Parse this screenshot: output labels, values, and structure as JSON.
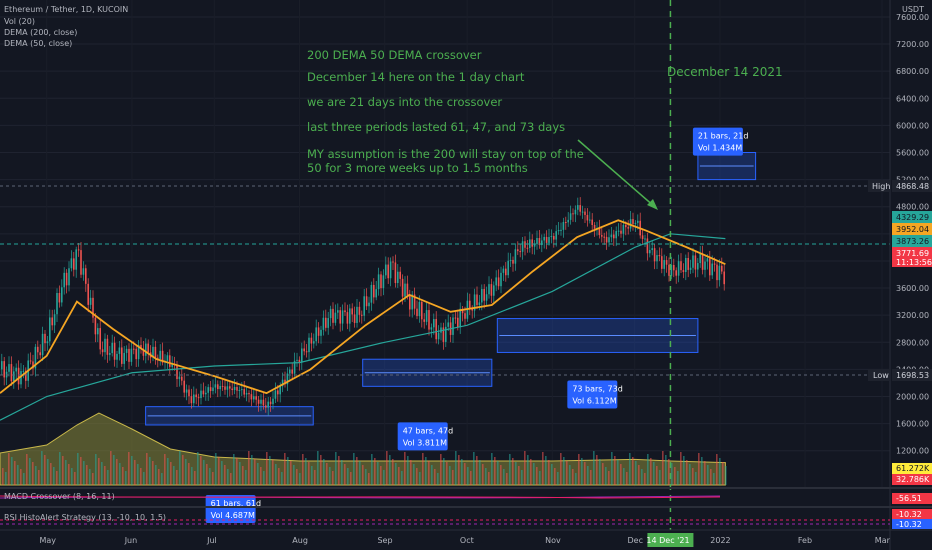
{
  "header": {
    "symbol": "Ethereum / Tether, 1D, KUCOIN",
    "indicators": [
      "Vol (20)",
      "DEMA (200, close)",
      "DEMA (50, close)"
    ]
  },
  "currency": "USDT",
  "annotations": {
    "lines": [
      "200 DEMA 50 DEMA crossover",
      "December 14 here on the 1 day chart",
      "we are 21 days into the crossover",
      "last three periods lasted 61, 47, and 73 days",
      "MY assumption is the 200 will stay on top of the",
      "50 for 3 more weeks up to 1.5 months"
    ],
    "vline_label": "December 14 2021",
    "color": "#4caf50"
  },
  "boxes": [
    {
      "bars": "61 bars, 61d",
      "vol": "Vol 4.687M"
    },
    {
      "bars": "47 bars, 47d",
      "vol": "Vol 3.811M"
    },
    {
      "bars": "73 bars, 73d",
      "vol": "Vol 6.112M"
    },
    {
      "bars": "21 bars, 21d",
      "vol": "Vol 1.434M"
    }
  ],
  "price_badges": {
    "high_label": "High",
    "high_value": "4868.48",
    "low_label": "Low",
    "low_value": "1698.53",
    "dema200": "4329.29",
    "dema50": "3952.04",
    "last_close": "3873.26",
    "current": "3771.69",
    "countdown": "11:13:56",
    "vol_a": "61.272K",
    "vol_b": "32.786K"
  },
  "panes": {
    "macd_label": "MACD Crossover (8, 16, 11)",
    "macd_value": "-56.51",
    "rsi_label": "RSI HistoAlert Strategy (13, -10, 10, 1.5)",
    "rsi_value_a": "-10.32",
    "rsi_value_b": "-10.32"
  },
  "x_axis": {
    "labels": [
      "May",
      "Jun",
      "Jul",
      "Aug",
      "Sep",
      "Oct",
      "Nov",
      "Dec",
      "14 Dec '21",
      "2022",
      "Feb",
      "Mar"
    ]
  },
  "chart_data": {
    "type": "line",
    "title": "Ethereum / Tether, 1D, KUCOIN",
    "y_ticks": [
      1200,
      1600,
      2000,
      2400,
      2800,
      3200,
      3600,
      4000,
      4400,
      4800,
      5200,
      5600,
      6000,
      6400,
      6800,
      7200,
      7600
    ],
    "y_tick_labels": [
      "1200.00",
      "1600.00",
      "2000.00",
      "2400.00",
      "2800.00",
      "3200.00",
      "3600.00",
      "4000.00",
      "4400.00",
      "4800.00",
      "5200.00",
      "5600.00",
      "6000.00",
      "6400.00",
      "6800.00",
      "7200.00",
      "7600.00"
    ],
    "ylim": [
      650,
      7850
    ],
    "x_months": [
      "2021-04-14",
      "2021-05-01",
      "2021-06-01",
      "2021-07-01",
      "2021-08-01",
      "2021-09-01",
      "2021-10-01",
      "2021-11-01",
      "2021-12-01",
      "2021-12-14",
      "2022-01-01",
      "2022-02-01",
      "2022-03-01"
    ],
    "series": [
      {
        "name": "ETH/USDT",
        "color": "#26a69a",
        "x": [
          "2021-04-14",
          "2021-04-22",
          "2021-05-01",
          "2021-05-06",
          "2021-05-12",
          "2021-05-20",
          "2021-05-28",
          "2021-06-05",
          "2021-06-15",
          "2021-06-22",
          "2021-07-01",
          "2021-07-10",
          "2021-07-20",
          "2021-08-01",
          "2021-08-12",
          "2021-08-22",
          "2021-09-03",
          "2021-09-10",
          "2021-09-21",
          "2021-10-01",
          "2021-10-10",
          "2021-10-20",
          "2021-11-01",
          "2021-11-10",
          "2021-11-20",
          "2021-12-01",
          "2021-12-05",
          "2021-12-14",
          "2021-12-25",
          "2022-01-03"
        ],
        "values": [
          2400,
          2300,
          2900,
          3600,
          4150,
          2750,
          2600,
          2700,
          2500,
          1950,
          2150,
          2100,
          1850,
          2600,
          3200,
          3200,
          3950,
          3400,
          2900,
          3300,
          3600,
          4200,
          4350,
          4800,
          4300,
          4600,
          4200,
          3850,
          4000,
          3771.69
        ]
      },
      {
        "name": "",
        "color": "#f5a623",
        "x": [
          "2021-04-14",
          "2021-05-01",
          "2021-05-12",
          "2021-05-25",
          "2021-06-10",
          "2021-07-01",
          "2021-07-20",
          "2021-08-05",
          "2021-08-25",
          "2021-09-10",
          "2021-09-25",
          "2021-10-10",
          "2021-10-25",
          "2021-11-10",
          "2021-11-25",
          "2021-12-05",
          "2021-12-20",
          "2022-01-03"
        ],
        "values": [
          2050,
          2600,
          3400,
          3000,
          2550,
          2300,
          2050,
          2400,
          3050,
          3500,
          3250,
          3350,
          3850,
          4350,
          4600,
          4450,
          4200,
          3952.04
        ]
      },
      {
        "name": "",
        "color": "#26a69a",
        "x": [
          "2021-04-14",
          "2021-05-01",
          "2021-06-01",
          "2021-07-01",
          "2021-08-01",
          "2021-09-01",
          "2021-10-01",
          "2021-11-01",
          "2021-12-01",
          "2021-12-14",
          "2022-01-03"
        ],
        "values": [
          1650,
          2000,
          2350,
          2450,
          2500,
          2800,
          3050,
          3550,
          4200,
          4400,
          4329.29
        ]
      }
    ],
    "periods": [
      {
        "start": "2021-06-06",
        "end": "2021-08-06",
        "days": 61,
        "low": 1580,
        "high": 1850
      },
      {
        "start": "2021-08-24",
        "end": "2021-10-10",
        "days": 47,
        "low": 2150,
        "high": 2550
      },
      {
        "start": "2021-10-12",
        "end": "2021-12-24",
        "days": 73,
        "low": 2650,
        "high": 3150
      },
      {
        "start": "2021-12-24",
        "end": "2022-01-14",
        "days": 21,
        "low": 5200,
        "high": 5600
      }
    ],
    "volume": {
      "x": [
        "2021-04-14",
        "2021-05-01",
        "2021-05-12",
        "2021-05-20",
        "2021-06-01",
        "2021-06-15",
        "2021-07-01",
        "2021-08-01",
        "2021-09-01",
        "2021-10-01",
        "2021-11-01",
        "2021-12-01",
        "2021-12-14",
        "2022-01-03"
      ],
      "values": [
        40,
        50,
        75,
        90,
        70,
        45,
        35,
        30,
        30,
        30,
        30,
        32,
        30,
        28
      ]
    }
  }
}
